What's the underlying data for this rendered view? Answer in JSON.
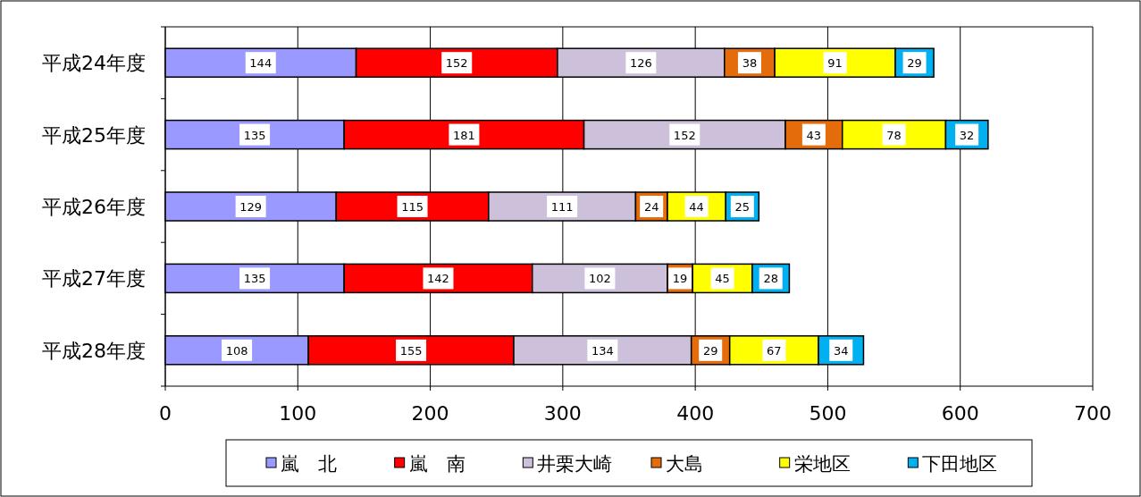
{
  "chart_data": {
    "type": "bar",
    "orientation": "horizontal",
    "stacked": true,
    "data_labels": true,
    "grid": "x",
    "legend": "bottom",
    "categories": [
      "平成24年度",
      "平成25年度",
      "平成26年度",
      "平成27年度",
      "平成28年度"
    ],
    "xlim": [
      0,
      700
    ],
    "xticks": [
      0,
      100,
      200,
      300,
      400,
      500,
      600,
      700
    ],
    "series": [
      {
        "name": "嵐　北",
        "color": "#9999ff",
        "values": [
          144,
          135,
          129,
          135,
          108
        ]
      },
      {
        "name": "嵐　南",
        "color": "#ff0000",
        "values": [
          152,
          181,
          115,
          142,
          155
        ]
      },
      {
        "name": "井栗大崎",
        "color": "#ccc0da",
        "values": [
          126,
          152,
          111,
          102,
          134
        ]
      },
      {
        "name": "大島",
        "color": "#e46c0a",
        "values": [
          38,
          43,
          24,
          19,
          29
        ]
      },
      {
        "name": "栄地区",
        "color": "#ffff00",
        "values": [
          91,
          78,
          44,
          45,
          67
        ]
      },
      {
        "name": "下田地区",
        "color": "#00b0f0",
        "values": [
          29,
          32,
          25,
          28,
          34
        ]
      }
    ]
  }
}
